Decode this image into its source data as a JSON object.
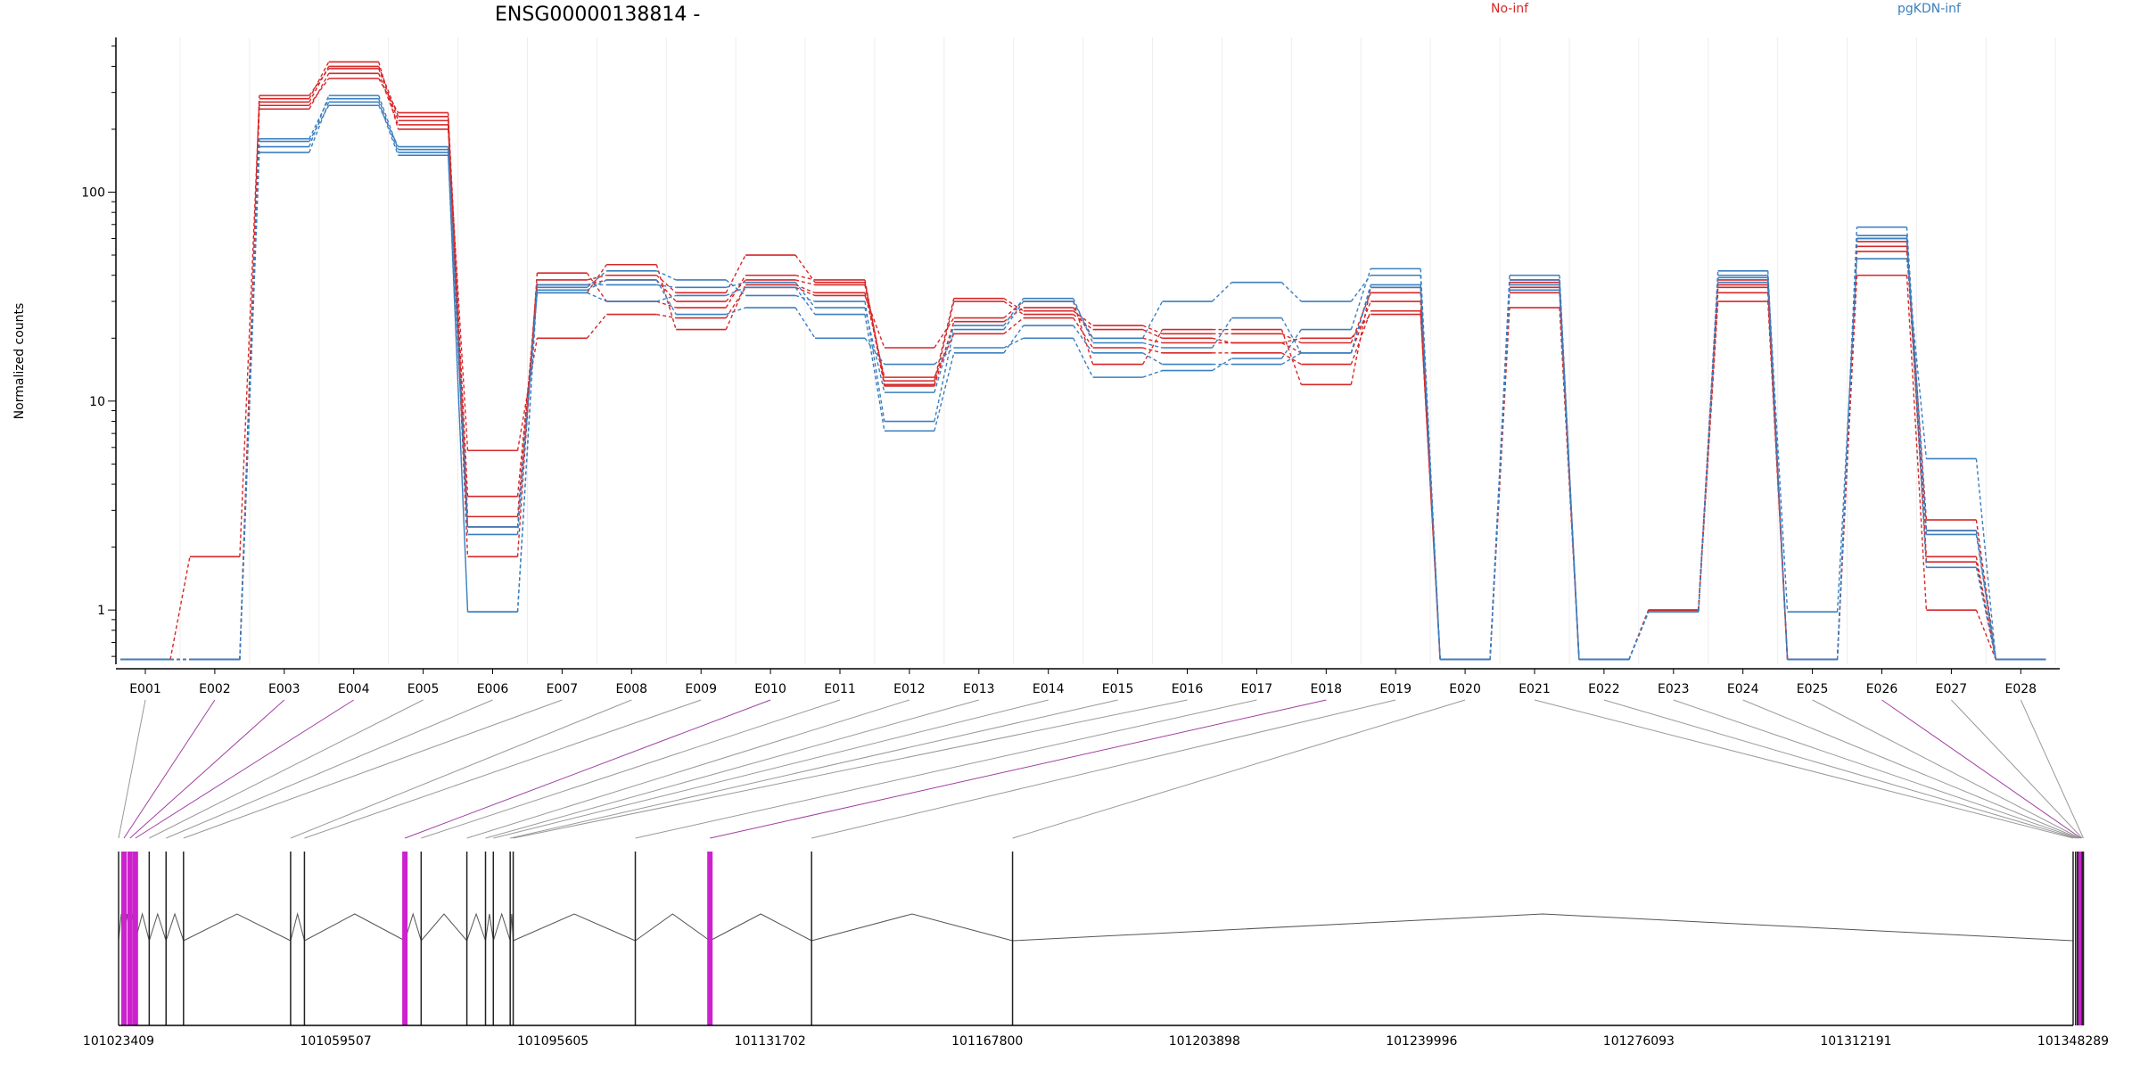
{
  "title": "ENSG00000138814 -",
  "legend": [
    {
      "label": "No-inf",
      "color": "#d62728"
    },
    {
      "label": "pgKDN-inf",
      "color": "#3a7fbf"
    }
  ],
  "chart_data": {
    "type": "line",
    "ylabel": "Normalized counts",
    "yscale": "log",
    "ylim": [
      0.55,
      550
    ],
    "yticks": [
      1,
      10,
      100
    ],
    "grid": "vertical-minor",
    "categories": [
      "E001",
      "E002",
      "E003",
      "E004",
      "E005",
      "E006",
      "E007",
      "E008",
      "E009",
      "E010",
      "E011",
      "E012",
      "E013",
      "E014",
      "E015",
      "E016",
      "E017",
      "E018",
      "E019",
      "E020",
      "E021",
      "E022",
      "E023",
      "E024",
      "E025",
      "E026",
      "E027",
      "E028"
    ],
    "series": [
      {
        "group": "No-inf",
        "values": [
          0.58,
          1.8,
          270,
          400,
          230,
          2.8,
          38,
          40,
          33,
          50,
          37,
          12.5,
          31,
          27,
          23,
          21,
          21,
          19,
          33,
          0.58,
          35,
          0.58,
          1.0,
          38,
          0.58,
          58,
          2.7,
          0.58
        ]
      },
      {
        "group": "No-inf",
        "values": [
          0.58,
          0.58,
          250,
          370,
          210,
          2.5,
          36,
          38,
          30,
          38,
          36,
          11.8,
          24,
          28,
          20,
          19,
          19,
          17,
          30,
          0.58,
          37,
          0.58,
          1.0,
          35,
          0.58,
          52,
          2.4,
          0.58
        ]
      },
      {
        "group": "No-inf",
        "values": [
          0.58,
          0.58,
          260,
          350,
          240,
          3.5,
          33,
          45,
          22,
          36,
          33,
          13,
          21,
          25,
          18,
          17,
          17,
          15,
          27,
          0.58,
          28,
          0.58,
          1.0,
          33,
          0.58,
          60,
          1.8,
          0.58
        ]
      },
      {
        "group": "No-inf",
        "values": [
          0.58,
          0.58,
          280,
          420,
          200,
          5.8,
          20,
          26,
          25,
          35,
          32,
          18,
          25,
          30,
          15,
          22,
          22,
          12,
          35,
          0.58,
          33,
          0.58,
          0.98,
          30,
          0.58,
          40,
          1.0,
          0.58
        ]
      },
      {
        "group": "No-inf",
        "values": [
          0.58,
          0.58,
          290,
          390,
          220,
          1.8,
          41,
          30,
          28,
          40,
          38,
          12,
          30,
          26,
          22,
          20,
          19,
          20,
          26,
          0.58,
          38,
          0.58,
          1.0,
          36,
          0.58,
          55,
          1.7,
          0.58
        ]
      },
      {
        "group": "pgKDN-inf",
        "values": [
          0.58,
          0.58,
          165,
          290,
          160,
          0.98,
          35,
          42,
          38,
          32,
          30,
          8,
          22,
          30,
          20,
          30,
          37,
          30,
          40,
          0.58,
          36,
          0.58,
          0.98,
          40,
          0.98,
          48,
          5.3,
          0.58
        ]
      },
      {
        "group": "pgKDN-inf",
        "values": [
          0.58,
          0.58,
          155,
          270,
          150,
          2.3,
          34,
          38,
          26,
          28,
          20,
          15,
          18,
          20,
          13,
          14,
          16,
          22,
          43,
          0.58,
          40,
          0.58,
          0.98,
          42,
          0.58,
          68,
          2.4,
          0.58
        ]
      },
      {
        "group": "pgKDN-inf",
        "values": [
          0.58,
          0.58,
          175,
          260,
          165,
          2.5,
          33,
          30,
          32,
          35,
          26,
          7.2,
          17,
          23,
          17,
          15,
          15,
          17,
          36,
          0.58,
          38,
          0.58,
          0.98,
          39,
          0.58,
          62,
          1.6,
          0.58
        ]
      },
      {
        "group": "pgKDN-inf",
        "values": [
          0.58,
          0.58,
          180,
          280,
          155,
          0.98,
          36,
          36,
          35,
          37,
          28,
          11,
          23,
          31,
          19,
          18,
          25,
          17,
          35,
          0.58,
          34,
          0.58,
          0.98,
          37,
          0.58,
          60,
          2.3,
          0.58
        ]
      }
    ]
  },
  "gene_model": {
    "start": 101023409,
    "end": 101348289,
    "axis_ticks": [
      "101023409",
      "101059507",
      "101095605",
      "101131702",
      "101167800",
      "101203898",
      "101239996",
      "101276093",
      "101312191",
      "101348289"
    ],
    "exon_positions": [
      101023409,
      101024300,
      101025300,
      101026200,
      101028500,
      101031300,
      101034200,
      101052000,
      101054300,
      101071000,
      101073700,
      101081300,
      101084400,
      101085700,
      101088500,
      101089000,
      101109300,
      101121700,
      101138600,
      101172000,
      101348289,
      101348700,
      101349000,
      101349200,
      101349400,
      101349600,
      101349800,
      101350000
    ],
    "highlighted_exons": [
      "E002",
      "E003",
      "E004",
      "E010",
      "E018",
      "E026"
    ],
    "colors": {
      "highlight": "#cc22cc",
      "normal": "#555555",
      "connector": "#999999",
      "highlight_connector": "#a040a0"
    }
  }
}
